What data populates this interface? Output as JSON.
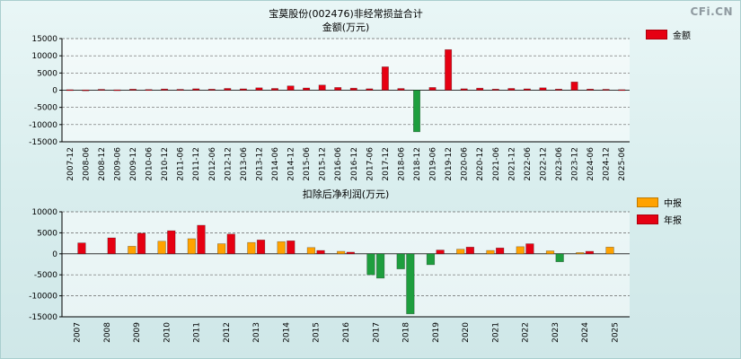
{
  "page": {
    "logo": "CFi.CN"
  },
  "colors": {
    "background_top": "#e9f6f6",
    "background_bottom": "#cfe7e8",
    "positive_red": "#e60012",
    "midyear_orange": "#ffa200",
    "negative_green": "#1e9e3e",
    "grid": "#666666",
    "axis": "#000000"
  },
  "chart_data": [
    {
      "type": "bar",
      "title": "宝莫股份(002476)非经常损益合计",
      "subtitle": "金额(万元)",
      "categories": [
        "2007-12",
        "2008-06",
        "2008-12",
        "2009-06",
        "2009-12",
        "2010-06",
        "2010-12",
        "2011-06",
        "2011-12",
        "2012-06",
        "2012-12",
        "2013-06",
        "2013-12",
        "2014-06",
        "2014-12",
        "2015-06",
        "2015-12",
        "2016-06",
        "2016-12",
        "2017-06",
        "2017-12",
        "2018-06",
        "2018-12",
        "2019-06",
        "2019-12",
        "2020-06",
        "2020-12",
        "2021-06",
        "2021-12",
        "2022-06",
        "2022-12",
        "2023-06",
        "2023-12",
        "2024-06",
        "2024-12",
        "2025-06"
      ],
      "series": [
        {
          "name": "金额",
          "color": "#e60012",
          "values": [
            150,
            80,
            250,
            120,
            300,
            200,
            350,
            250,
            420,
            300,
            520,
            400,
            700,
            520,
            1250,
            650,
            1500,
            800,
            600,
            420,
            6800,
            500,
            -12100,
            800,
            11800,
            420,
            600,
            320,
            520,
            400,
            700,
            320,
            2400,
            320,
            260,
            160
          ]
        }
      ],
      "negative_color": "#1e9e3e",
      "ylim": [
        -15000,
        15000
      ],
      "yticks": [
        15000,
        10000,
        5000,
        0,
        -5000,
        -10000,
        -15000
      ],
      "grid": "dashed",
      "legend_position": "top-right"
    },
    {
      "type": "bar",
      "title": "扣除后净利润(万元)",
      "subtitle": "",
      "categories": [
        "2007",
        "2008",
        "2009",
        "2010",
        "2011",
        "2012",
        "2013",
        "2014",
        "2015",
        "2016",
        "2017",
        "2018",
        "2019",
        "2020",
        "2021",
        "2022",
        "2023",
        "2024",
        "2025"
      ],
      "series": [
        {
          "name": "中报",
          "color": "#ffa200",
          "values": [
            null,
            null,
            1800,
            3000,
            3600,
            2400,
            2700,
            2900,
            1500,
            600,
            -5000,
            -3600,
            -2600,
            1100,
            800,
            1700,
            700,
            300,
            1600
          ]
        },
        {
          "name": "年报",
          "color": "#e60012",
          "values": [
            2600,
            3800,
            4900,
            5500,
            6800,
            4700,
            3300,
            3100,
            800,
            400,
            -5800,
            -14300,
            900,
            1600,
            1400,
            2400,
            -1900,
            600,
            null
          ]
        }
      ],
      "negative_color": "#1e9e3e",
      "ylim": [
        -15000,
        10000
      ],
      "yticks": [
        10000,
        5000,
        0,
        -5000,
        -10000,
        -15000
      ],
      "grid": "dashed",
      "legend_position": "right"
    }
  ]
}
